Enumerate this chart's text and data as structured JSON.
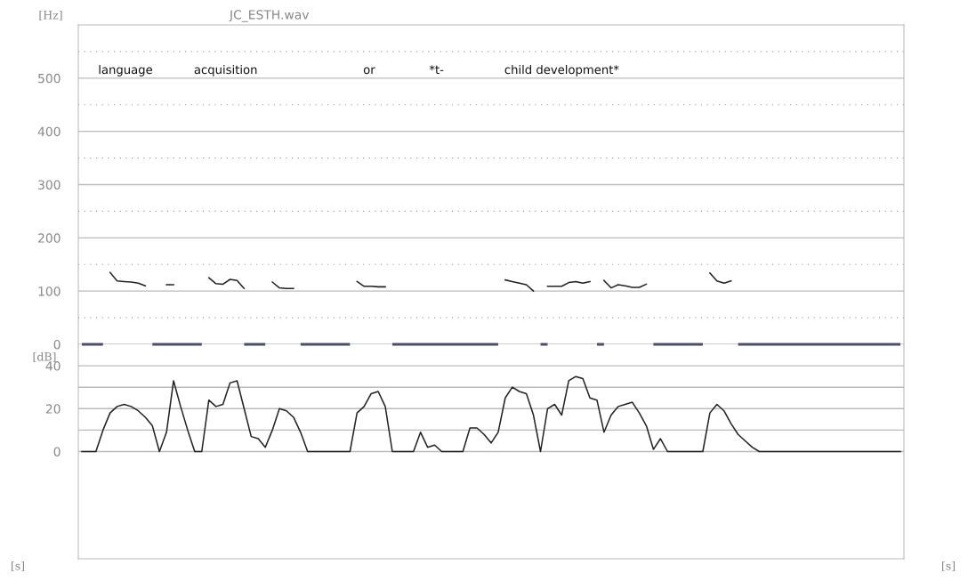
{
  "chart_data": [
    {
      "type": "line",
      "title": "JC_ESTH.wav",
      "ylabel": "[Hz]",
      "categories": [
        null,
        null,
        null,
        null,
        null,
        null,
        null,
        null,
        null,
        null,
        null,
        null,
        null,
        null,
        null,
        null,
        null,
        null,
        null,
        null,
        null,
        null,
        null,
        null,
        null,
        null,
        null,
        null,
        null,
        null,
        null,
        null,
        null,
        null,
        null,
        null,
        null,
        null,
        null,
        null,
        null,
        null,
        null,
        null,
        null,
        null,
        null,
        null,
        null,
        null,
        null,
        null,
        null,
        null,
        null,
        null,
        null,
        null,
        null,
        null,
        null,
        null,
        null,
        null,
        null,
        null,
        null,
        null,
        null,
        null,
        null,
        null,
        null,
        null,
        null,
        null,
        null,
        null,
        null,
        null,
        null,
        null,
        null,
        null,
        null,
        null,
        null,
        null,
        null,
        null,
        null,
        null,
        null,
        null,
        null,
        null,
        null,
        null,
        null,
        null,
        null,
        null,
        null,
        null,
        null,
        null,
        null,
        null,
        null,
        null,
        null,
        null,
        null,
        null,
        null,
        null,
        null
      ],
      "series": [
        {
          "color": "#222222",
          "values": [
            null,
            null,
            null,
            null,
            135,
            119,
            118,
            117,
            115,
            110,
            null,
            null,
            112,
            112,
            null,
            null,
            null,
            null,
            125,
            114,
            113,
            122,
            120,
            105,
            null,
            null,
            null,
            117,
            106,
            105,
            105,
            null,
            null,
            null,
            null,
            null,
            null,
            null,
            null,
            118,
            109,
            109,
            108,
            108,
            null,
            null,
            null,
            null,
            null,
            null,
            null,
            null,
            null,
            null,
            null,
            null,
            null,
            null,
            null,
            null,
            121,
            118,
            115,
            112,
            100,
            null,
            109,
            109,
            109,
            116,
            118,
            115,
            118,
            null,
            120,
            106,
            112,
            110,
            107,
            107,
            113,
            null,
            null,
            null,
            null,
            null,
            null,
            null,
            null,
            134,
            119,
            115,
            119,
            null,
            null,
            null,
            null,
            null,
            null,
            null,
            null,
            null,
            null,
            null,
            null,
            null,
            null,
            null,
            null,
            null,
            null,
            null,
            null,
            null,
            null,
            null,
            null
          ]
        },
        {
          "color": "#4a4d6e",
          "values": [
            0,
            0,
            0,
            0,
            null,
            null,
            null,
            null,
            null,
            null,
            0,
            0,
            0,
            0,
            0,
            0,
            0,
            0,
            null,
            null,
            null,
            null,
            null,
            0,
            0,
            0,
            0,
            null,
            null,
            null,
            null,
            0,
            0,
            0,
            0,
            0,
            0,
            0,
            0,
            null,
            null,
            null,
            null,
            null,
            0,
            0,
            0,
            0,
            0,
            0,
            0,
            0,
            0,
            0,
            0,
            0,
            0,
            0,
            0,
            0,
            null,
            null,
            null,
            null,
            null,
            0,
            0,
            null,
            null,
            null,
            null,
            null,
            null,
            0,
            0,
            null,
            null,
            null,
            null,
            null,
            null,
            0,
            0,
            0,
            0,
            0,
            0,
            0,
            0,
            null,
            null,
            null,
            null,
            0,
            0,
            0,
            0,
            0,
            0,
            0,
            0,
            0,
            0,
            0,
            0,
            0,
            0,
            0,
            0,
            0,
            0,
            0,
            0,
            0,
            0,
            0,
            0
          ]
        }
      ],
      "ylim": [
        0,
        600
      ],
      "yticks": [
        0,
        {
          "value": 50,
          "label": null
        },
        100,
        {
          "value": 150,
          "label": null
        },
        200,
        {
          "value": 250,
          "label": null
        },
        300,
        {
          "value": 350,
          "label": null
        },
        400,
        {
          "value": 450,
          "label": null
        },
        500,
        {
          "value": 550,
          "label": null
        }
      ],
      "grid": "y",
      "tick_labels": "y",
      "legend": false,
      "annotations": [
        "language",
        "acquisition",
        "or",
        "*t-",
        "child development*"
      ]
    },
    {
      "type": "line",
      "ylabel": "[dB]",
      "xlabel": "[s]",
      "categories": [
        null,
        null,
        null,
        null,
        null,
        null,
        null,
        null,
        null,
        null,
        null,
        null,
        null,
        null,
        null,
        null,
        null,
        null,
        null,
        null,
        null,
        null,
        null,
        null,
        null,
        null,
        null,
        null,
        null,
        null,
        null,
        null,
        null,
        null,
        null,
        null,
        null,
        null,
        null,
        null,
        null,
        null,
        null,
        null,
        null,
        null,
        null,
        null,
        null,
        null,
        null,
        null,
        null,
        null,
        null,
        null,
        null,
        null,
        null,
        null,
        null,
        null,
        null,
        null,
        null,
        null,
        null,
        null,
        null,
        null,
        null,
        null,
        null,
        null,
        null,
        null,
        null,
        null,
        null,
        null,
        null,
        null,
        null,
        null,
        null,
        null,
        null,
        null,
        null,
        null,
        null,
        null,
        null,
        null,
        null,
        null,
        null,
        null,
        null,
        null,
        null,
        null,
        null,
        null,
        null,
        null,
        null,
        null,
        null,
        null,
        null,
        null,
        null,
        null,
        null,
        null,
        null
      ],
      "series": [
        {
          "color": "#222222",
          "values": [
            0,
            0,
            0,
            10,
            18,
            21,
            22,
            21,
            19,
            16,
            12,
            0,
            9,
            33,
            21,
            10,
            0,
            0,
            24,
            21,
            22,
            32,
            33,
            20,
            7,
            6,
            2,
            10,
            20,
            19,
            16,
            9,
            0,
            0,
            0,
            0,
            0,
            0,
            0,
            18,
            21,
            27,
            28,
            21,
            0,
            0,
            0,
            0,
            9,
            2,
            3,
            0,
            0,
            0,
            0,
            11,
            11,
            8,
            4,
            9,
            25,
            30,
            28,
            27,
            17,
            0,
            20,
            22,
            17,
            33,
            35,
            34,
            25,
            24,
            9,
            17,
            21,
            22,
            23,
            18,
            12,
            1,
            6,
            0,
            0,
            0,
            0,
            0,
            0,
            18,
            22,
            19,
            13,
            8,
            5,
            2,
            0,
            0,
            0,
            0,
            0,
            0,
            0,
            0,
            0,
            0,
            0,
            0,
            0,
            0,
            0,
            0,
            0,
            0,
            0,
            0,
            0
          ]
        }
      ],
      "ylim": [
        -50,
        50
      ],
      "yticks": [
        0,
        {
          "value": 10,
          "label": null
        },
        20,
        {
          "value": 30,
          "label": null
        },
        40
      ],
      "grid": "y",
      "tick_labels": "y",
      "legend": false
    }
  ]
}
